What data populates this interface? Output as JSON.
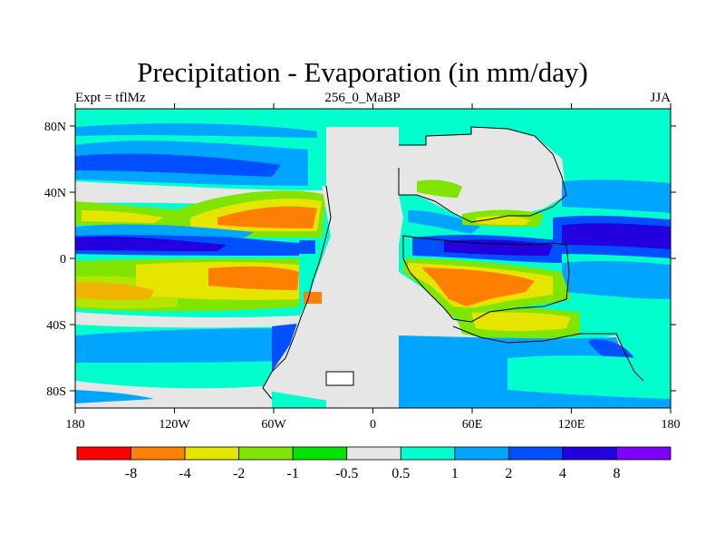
{
  "title": "Precipitation - Evaporation (in mm/day)",
  "subtitle_left": "Expt = tflMz",
  "subtitle_center": "256_0_MaBP",
  "subtitle_right": "JJA",
  "map": {
    "lon_ticks": [
      "180",
      "120W",
      "60W",
      "0",
      "60E",
      "120E",
      "180"
    ],
    "lat_ticks": [
      "80N",
      "40N",
      "0",
      "40S",
      "80S"
    ]
  },
  "colorbar": {
    "colors": [
      "#ff0000",
      "#ff7f00",
      "#e5e500",
      "#80e500",
      "#00e500",
      "#e6e6e6",
      "#00ffcc",
      "#00a5ff",
      "#0050ff",
      "#2300e0",
      "#7f00ff"
    ],
    "labels": [
      "-8",
      "-4",
      "-2",
      "-1",
      "-0.5",
      "0.5",
      "1",
      "2",
      "4",
      "8"
    ]
  }
}
